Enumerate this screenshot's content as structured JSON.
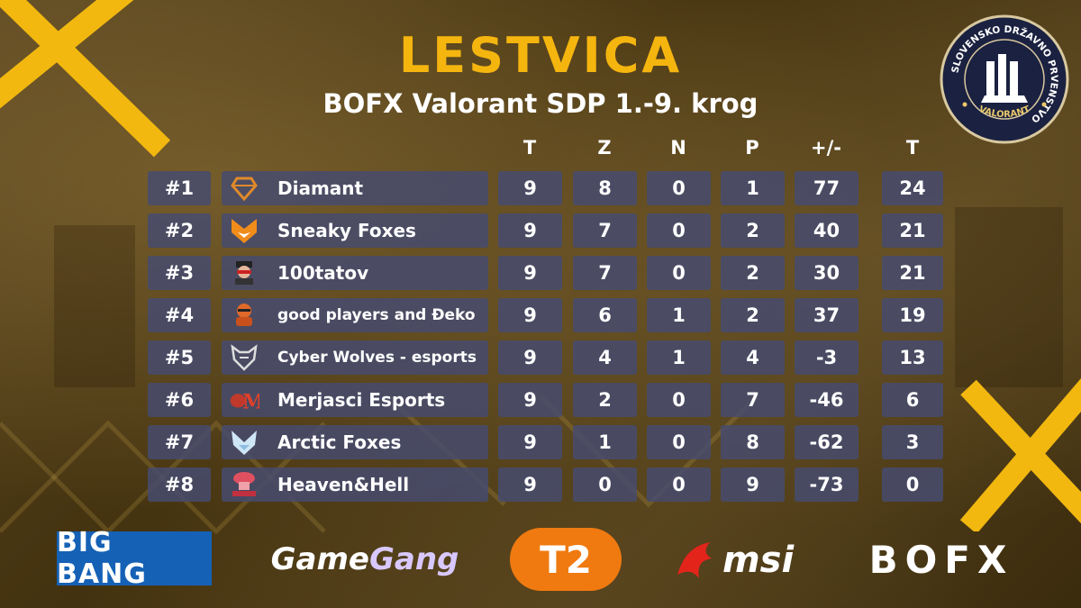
{
  "title": "LESTVICA",
  "subtitle": "BOFX Valorant SDP 1.-9. krog",
  "badge": {
    "ring_text": "SLOVENSKO DRŽAVNO PRVENSTVO",
    "bottom_text": "VALORANT"
  },
  "columns": [
    "T",
    "Z",
    "N",
    "P",
    "+/-",
    "T"
  ],
  "rows": [
    {
      "rank": "#1",
      "team": "Diamant",
      "logo": "diamant-logo",
      "t": "9",
      "z": "8",
      "n": "0",
      "p": "1",
      "diff": "77",
      "pts": "24"
    },
    {
      "rank": "#2",
      "team": "Sneaky Foxes",
      "logo": "fox-logo",
      "t": "9",
      "z": "7",
      "n": "0",
      "p": "2",
      "diff": "40",
      "pts": "21"
    },
    {
      "rank": "#3",
      "team": "100tatov",
      "logo": "100tatov-logo",
      "t": "9",
      "z": "7",
      "n": "0",
      "p": "2",
      "diff": "30",
      "pts": "21"
    },
    {
      "rank": "#4",
      "team": "good players and Đeko",
      "logo": "deko-logo",
      "t": "9",
      "z": "6",
      "n": "1",
      "p": "2",
      "diff": "37",
      "pts": "19"
    },
    {
      "rank": "#5",
      "team": "Cyber Wolves - esports",
      "logo": "wolf-logo",
      "t": "9",
      "z": "4",
      "n": "1",
      "p": "4",
      "diff": "-3",
      "pts": "13"
    },
    {
      "rank": "#6",
      "team": "Merjasci Esports",
      "logo": "boar-logo",
      "t": "9",
      "z": "2",
      "n": "0",
      "p": "7",
      "diff": "-46",
      "pts": "6"
    },
    {
      "rank": "#7",
      "team": "Arctic Foxes",
      "logo": "arctic-fox-logo",
      "t": "9",
      "z": "1",
      "n": "0",
      "p": "8",
      "diff": "-62",
      "pts": "3"
    },
    {
      "rank": "#8",
      "team": "Heaven&Hell",
      "logo": "heavenhell-logo",
      "t": "9",
      "z": "0",
      "n": "0",
      "p": "9",
      "diff": "-73",
      "pts": "0"
    }
  ],
  "sponsors": {
    "bigbang": "BIG BANG",
    "gamegang_a": "Game",
    "gamegang_b": "Gang",
    "t2": "T2",
    "msi": "msi",
    "bofx": "BOFX"
  },
  "colors": {
    "accent": "#f5b50f",
    "cell_bg": "#464b6e",
    "text": "#ffffff"
  }
}
